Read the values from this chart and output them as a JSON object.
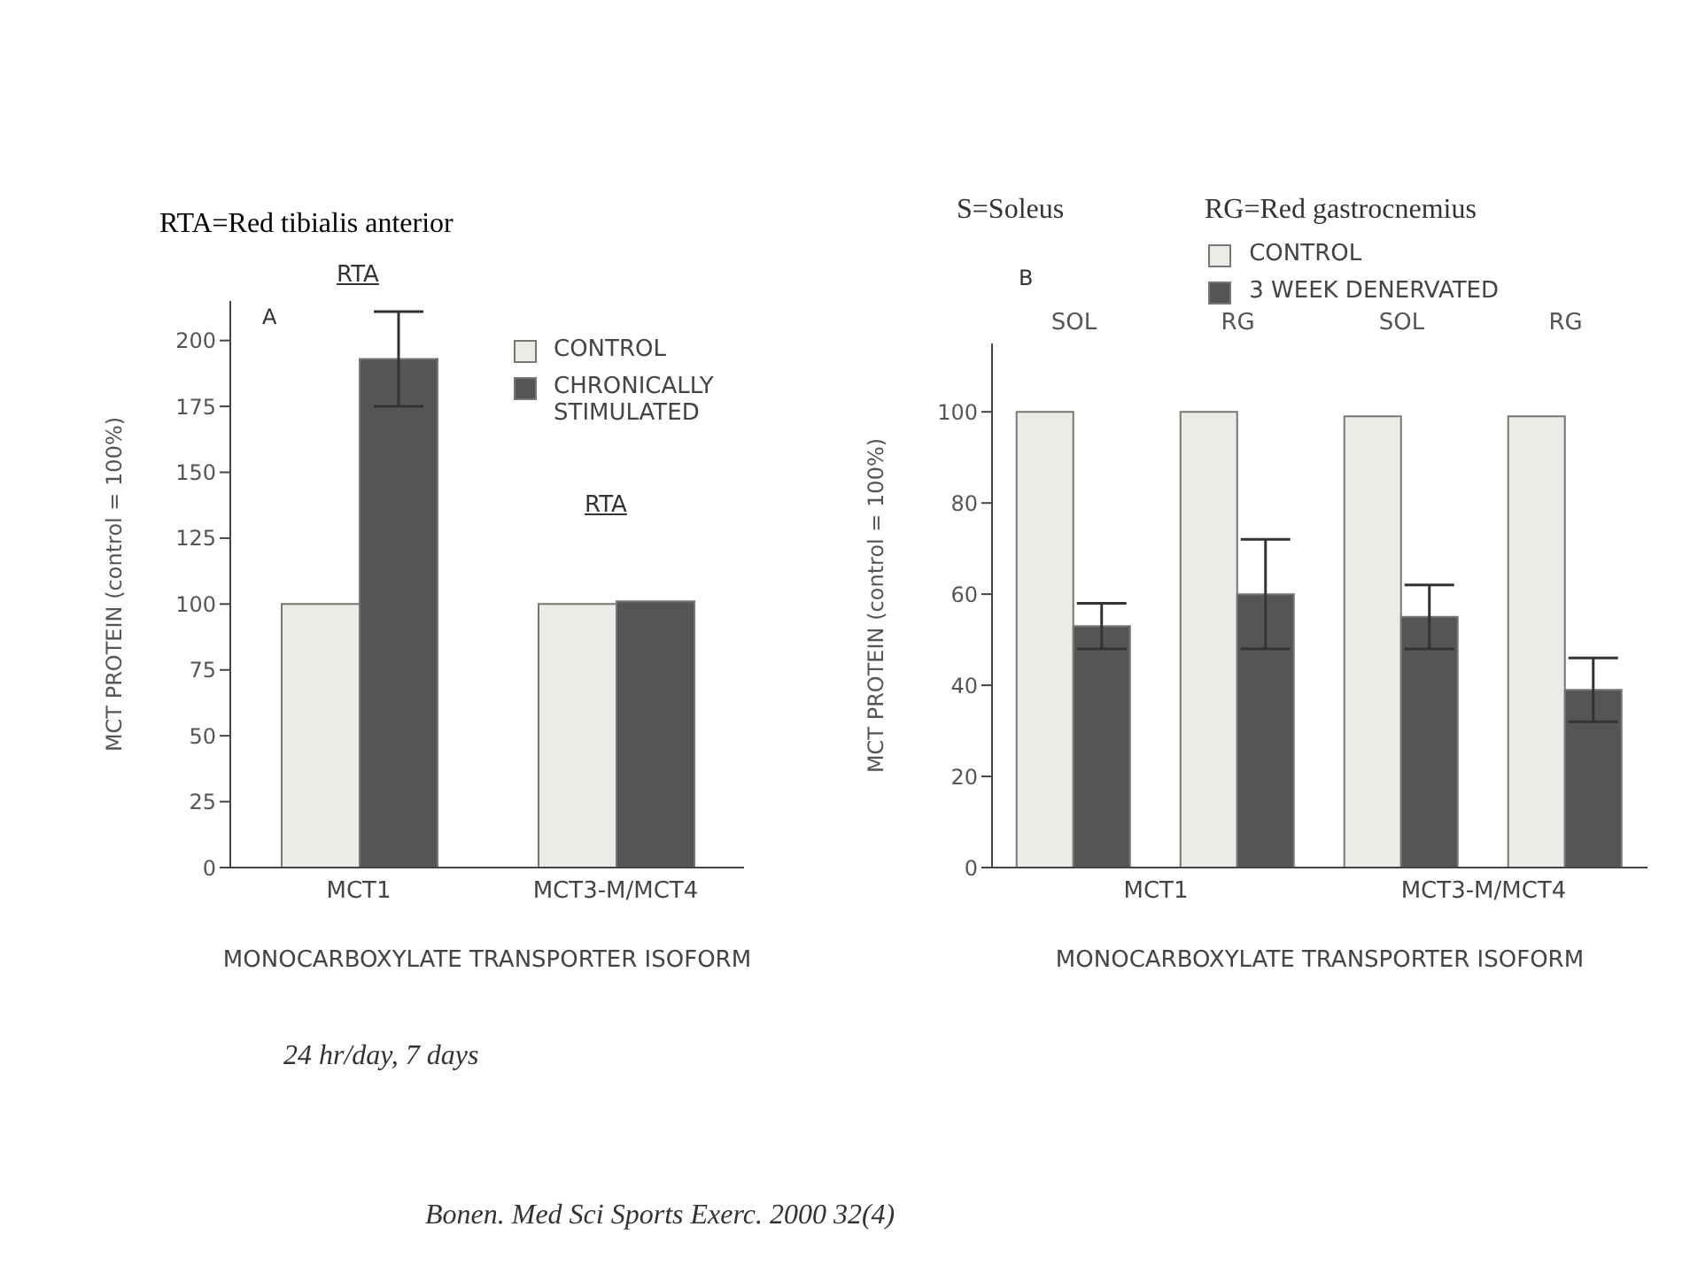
{
  "chart_data": [
    {
      "type": "bar",
      "subtitle": "RTA=Red tibialis anterior",
      "ylabel": "MCT PROTEIN (control = 100%)",
      "xlabel": "MONOCARBOXYLATE TRANSPORTER ISOFORM",
      "categories": [
        "MCT1",
        "MCT3-M/MCT4"
      ],
      "series": [
        {
          "name": "CONTROL",
          "color": "#ecece6",
          "values": [
            100,
            100
          ]
        },
        {
          "name": "CHRONICALLY STIMULATED",
          "color": "#555555",
          "values": [
            193,
            101
          ],
          "errors": [
            18,
            null
          ]
        }
      ],
      "ylim": [
        0,
        215
      ],
      "yticks": [
        0,
        25,
        50,
        75,
        100,
        125,
        150,
        175,
        200
      ],
      "grid": false,
      "legend": "top right",
      "annotations": [
        "A",
        "24 hr/day, 7 days",
        "Bonen. Med Sci Sports Exerc. 2000 32(4)",
        "RTA",
        "RTA"
      ]
    },
    {
      "type": "bar",
      "ylabel": "MCT PROTEIN (control = 100%)",
      "xlabel": "MONOCARBOXYLATE TRANSPORTER ISOFORM",
      "categories": [
        "SOL",
        "RG",
        "SOL",
        "RG"
      ],
      "series": [
        {
          "name": "CONTROL",
          "color": "#ecece6",
          "values": [
            100,
            100,
            99,
            99
          ]
        },
        {
          "name": "3 WEEK DENERVATED",
          "color": "#555555",
          "values": [
            53,
            60,
            55,
            39
          ],
          "errors": [
            5,
            12,
            7,
            7
          ]
        }
      ],
      "ylim": [
        0,
        115
      ],
      "yticks": [
        0,
        20,
        40,
        60,
        80,
        100
      ],
      "grid": false,
      "legend": "top",
      "annotations": [
        "S=Soleus",
        "RG=Red gastrocnemius",
        "B",
        "MCT1",
        "MCT3-M/MCT4"
      ]
    }
  ]
}
